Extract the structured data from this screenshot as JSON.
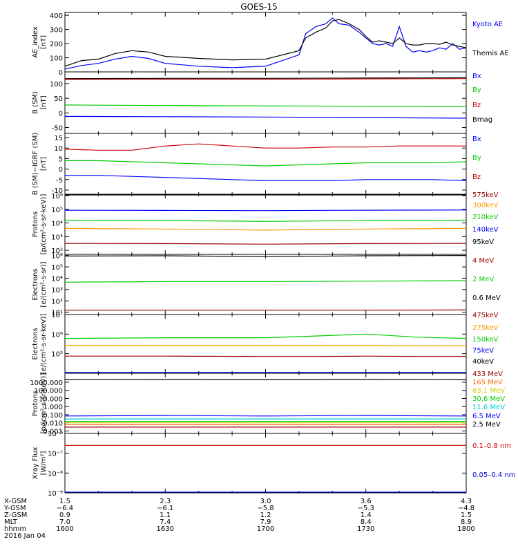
{
  "title": "GOES-15",
  "x_axis": {
    "ticks": [
      {
        "hhmm": "1600",
        "x_gsm": "1.5",
        "y_gsm": "−6.4",
        "z_gsm": "0.9",
        "mlt": "7.0"
      },
      {
        "hhmm": "1630",
        "x_gsm": "2.3",
        "y_gsm": "−6.1",
        "z_gsm": "1.1",
        "mlt": "7.4"
      },
      {
        "hhmm": "1700",
        "x_gsm": "3.0",
        "y_gsm": "−5.8",
        "z_gsm": "1.2",
        "mlt": "7.9"
      },
      {
        "hhmm": "1730",
        "x_gsm": "3.6",
        "y_gsm": "−5.3",
        "z_gsm": "1.4",
        "mlt": "8.4"
      },
      {
        "hhmm": "1800",
        "x_gsm": "4.3",
        "y_gsm": "−4.8",
        "z_gsm": "1.5",
        "mlt": "8.9"
      }
    ],
    "row_labels": [
      "X-GSM",
      "Y-GSM",
      "Z-GSM",
      "MLT",
      "hhmm"
    ],
    "date": "2016 Jan 04"
  },
  "chart_data": [
    {
      "id": "ae",
      "type": "line",
      "scale": "linear",
      "ylabel": [
        "AE_index",
        "[nT]"
      ],
      "ylim": [
        0,
        420
      ],
      "yticks": [
        "0",
        "100",
        "200",
        "300",
        "400"
      ],
      "x": [
        1600,
        1605,
        1610,
        1615,
        1620,
        1625,
        1630,
        1640,
        1650,
        1700,
        1710,
        1712,
        1715,
        1718,
        1720,
        1722,
        1725,
        1728,
        1730,
        1732,
        1734,
        1736,
        1738,
        1740,
        1742,
        1744,
        1746,
        1748,
        1750,
        1752,
        1754,
        1756,
        1758,
        1800
      ],
      "series": [
        {
          "name": "Kyoto AE",
          "color": "#0000ff",
          "values": [
            20,
            45,
            60,
            90,
            110,
            95,
            60,
            40,
            30,
            40,
            120,
            270,
            320,
            340,
            380,
            340,
            330,
            280,
            240,
            200,
            190,
            200,
            180,
            320,
            180,
            140,
            150,
            140,
            150,
            170,
            160,
            200,
            160,
            170
          ]
        },
        {
          "name": "Themis AE",
          "color": "#000000",
          "values": [
            40,
            80,
            90,
            130,
            150,
            140,
            110,
            95,
            85,
            90,
            150,
            240,
            280,
            310,
            360,
            370,
            340,
            300,
            250,
            210,
            220,
            210,
            200,
            240,
            200,
            190,
            190,
            200,
            200,
            195,
            210,
            190,
            180,
            170
          ]
        }
      ]
    },
    {
      "id": "bsm",
      "type": "line",
      "scale": "linear",
      "ylabel": [
        "B (SM)",
        "[nT]"
      ],
      "ylim": [
        -70,
        140
      ],
      "yticks": [
        "-50",
        "0",
        "50",
        "100"
      ],
      "x": [
        1600,
        1630,
        1700,
        1730,
        1800
      ],
      "series": [
        {
          "name": "Bx",
          "color": "#0000ff",
          "values": [
            -12,
            -13,
            -14,
            -16,
            -18
          ]
        },
        {
          "name": "By",
          "color": "#00cc00",
          "values": [
            27,
            25,
            24,
            23,
            22
          ]
        },
        {
          "name": "Bz",
          "color": "#cc0000",
          "values": [
            114,
            115,
            115,
            116,
            117
          ]
        },
        {
          "name": "Bmag",
          "color": "#000000",
          "values": [
            117,
            118,
            118,
            119,
            120
          ]
        }
      ]
    },
    {
      "id": "bigrf",
      "type": "line",
      "scale": "linear",
      "ylabel": [
        "B (SM)−IGRF (SM)",
        "[nT]"
      ],
      "ylim": [
        -12,
        17
      ],
      "yticks": [
        "-10",
        "-5",
        "0",
        "5",
        "10",
        "15"
      ],
      "x": [
        1600,
        1610,
        1620,
        1630,
        1640,
        1650,
        1700,
        1710,
        1720,
        1730,
        1740,
        1750,
        1800
      ],
      "series": [
        {
          "name": "Bx",
          "color": "#0000ff",
          "values": [
            -3,
            -3,
            -3.5,
            -4,
            -4.5,
            -5,
            -5.5,
            -5.5,
            -5.5,
            -5,
            -5,
            -5,
            -5.5
          ]
        },
        {
          "name": "By",
          "color": "#00cc00",
          "values": [
            4,
            4,
            3.5,
            3,
            2.5,
            2,
            1.5,
            2,
            2.5,
            3,
            3,
            3,
            3.5
          ]
        },
        {
          "name": "Bz",
          "color": "#cc0000",
          "values": [
            9.5,
            9,
            9,
            11,
            12,
            11,
            10,
            10,
            10.5,
            10.5,
            11,
            11,
            11
          ]
        }
      ]
    },
    {
      "id": "protons_kev",
      "type": "line",
      "scale": "log",
      "ylabel": [
        "Protons",
        "[p/(cm²-s-sr-keV)]"
      ],
      "ylim_log": [
        1.7,
        6.1
      ],
      "yticks": [
        "10²",
        "10³",
        "10⁴",
        "10⁵",
        "10⁶"
      ],
      "x": [
        1600,
        1630,
        1700,
        1730,
        1800
      ],
      "series": [
        {
          "name": "95keV",
          "color": "#000000",
          "values": [
            1200000,
            1250000,
            1200000,
            1300000,
            1350000
          ]
        },
        {
          "name": "140keV",
          "color": "#0000ff",
          "values": [
            85000,
            83000,
            80000,
            85000,
            88000
          ]
        },
        {
          "name": "210keV",
          "color": "#00cc00",
          "values": [
            16000,
            15000,
            13000,
            15000,
            16000
          ]
        },
        {
          "name": "300keV",
          "color": "#ff9900",
          "values": [
            4000,
            3600,
            3000,
            3600,
            4000
          ]
        },
        {
          "name": "575keV",
          "color": "#990000",
          "values": [
            320,
            310,
            280,
            310,
            320
          ]
        }
      ]
    },
    {
      "id": "electrons_mev",
      "type": "line",
      "scale": "log",
      "ylabel": [
        "Electrons",
        "[e/(cm²-s-sr)]"
      ],
      "ylim_log": [
        0.8,
        6.1
      ],
      "yticks": [
        "10¹",
        "10²",
        "10³",
        "10⁴",
        "10⁵",
        "10⁶"
      ],
      "x": [
        1600,
        1630,
        1700,
        1730,
        1800
      ],
      "series": [
        {
          "name": "0.6 MeV",
          "color": "#000000",
          "values": [
            900000,
            950000,
            800000,
            950000,
            1000000
          ]
        },
        {
          "name": "2 MeV",
          "color": "#00cc00",
          "values": [
            4500,
            5000,
            5000,
            5500,
            6000
          ]
        },
        {
          "name": "4 MeV",
          "color": "#990000",
          "values": [
            15,
            15,
            15,
            15,
            16
          ]
        }
      ]
    },
    {
      "id": "electrons_kev",
      "type": "line",
      "scale": "log",
      "ylabel": [
        "Electrons",
        "[e/(cm²-s-sr-keV)]"
      ],
      "ylim_log": [
        4,
        7
      ],
      "yticks": [
        "10⁵",
        "10⁶",
        "10⁷"
      ],
      "x": [
        1600,
        1630,
        1700,
        1715,
        1730,
        1745,
        1800
      ],
      "series": [
        {
          "name": "40keV",
          "color": "#000000",
          "values": [
            0,
            0,
            0,
            0,
            0,
            0,
            0
          ]
        },
        {
          "name": "75keV",
          "color": "#0000ff",
          "values": [
            0,
            0,
            0,
            0,
            0,
            0,
            0
          ]
        },
        {
          "name": "150keV",
          "color": "#00cc00",
          "values": [
            600000,
            650000,
            650000,
            800000,
            1000000,
            700000,
            600000
          ]
        },
        {
          "name": "275keV",
          "color": "#ff9900",
          "values": [
            260000,
            260000,
            260000,
            260000,
            260000,
            255000,
            255000
          ]
        },
        {
          "name": "475keV",
          "color": "#990000",
          "values": [
            75000,
            75000,
            72000,
            72000,
            75000,
            72000,
            72000
          ]
        }
      ]
    },
    {
      "id": "protons_mev",
      "type": "line",
      "scale": "log",
      "ylabel": [
        "Protons",
        "[p/(cm²-s-sr-keV)]"
      ],
      "ylim_log": [
        -3.3,
        4.1
      ],
      "yticks": [
        "0.001",
        "0.010",
        "0.100",
        "1.000",
        "10.000",
        "100.000",
        "1000.000"
      ],
      "x": [
        1600,
        1630,
        1700,
        1730,
        1800
      ],
      "series": [
        {
          "name": "2.5 MeV",
          "color": "#000000",
          "values": [
            2000,
            2100,
            2000,
            2100,
            2000
          ]
        },
        {
          "name": "6.5 MeV",
          "color": "#0000ff",
          "values": [
            0.07,
            0.08,
            0.07,
            0.08,
            0.07
          ]
        },
        {
          "name": "11.6 MeV",
          "color": "#00cccc",
          "values": [
            0.03,
            0.03,
            0.03,
            0.03,
            0.03
          ]
        },
        {
          "name": "30.6 MeV",
          "color": "#00cc00",
          "values": [
            0.015,
            0.015,
            0.015,
            0.015,
            0.015
          ]
        },
        {
          "name": "63.1 MeV",
          "color": "#cccc00",
          "values": [
            0.01,
            0.01,
            0.01,
            0.01,
            0.01
          ]
        },
        {
          "name": "165 MeV",
          "color": "#ff6600",
          "values": [
            0.006,
            0.006,
            0.006,
            0.006,
            0.006
          ]
        },
        {
          "name": "433 MeV",
          "color": "#990000",
          "values": [
            0.003,
            0.003,
            0.003,
            0.003,
            0.003
          ]
        }
      ]
    },
    {
      "id": "xray",
      "type": "line",
      "scale": "log",
      "ylabel": [
        "Xray Flux",
        "[W/m²]"
      ],
      "ylim_log": [
        -9,
        -6
      ],
      "yticks": [
        "10⁻⁹",
        "10⁻⁸",
        "10⁻⁷",
        "10⁻⁶"
      ],
      "x": [
        1600,
        1630,
        1700,
        1730,
        1800
      ],
      "series": [
        {
          "name": "0.1–0.8 nm",
          "color": "#cc0000",
          "values": [
            2.5e-07,
            2.5e-07,
            2.5e-07,
            2.5e-07,
            2.5e-07
          ]
        },
        {
          "name": "0.05–0.4 nm",
          "color": "#0000cc",
          "values": [
            1e-09,
            1e-09,
            1e-09,
            1e-09,
            1e-09
          ]
        }
      ]
    }
  ]
}
